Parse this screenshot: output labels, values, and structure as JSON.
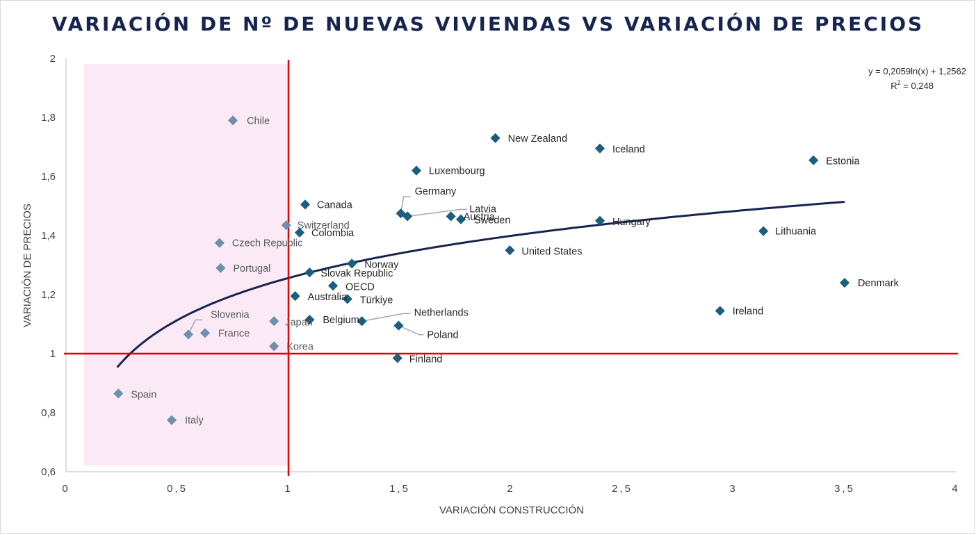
{
  "chart_data": {
    "type": "scatter",
    "title": "VARIACIÓN DE Nº DE NUEVAS VIVIENDAS VS VARIACIÓN DE PRECIOS",
    "xlabel": "VARIACIÓN CONSTRUCCIÓN",
    "ylabel": "VARIACIÓN DE PRECIOS",
    "xlim": [
      0,
      4
    ],
    "ylim": [
      0.6,
      2
    ],
    "x_ticks": [
      0,
      0.5,
      1,
      1.5,
      2,
      2.5,
      3,
      3.5,
      4
    ],
    "x_tick_labels": [
      "0",
      "0,5",
      "1",
      "1,5",
      "2",
      "2,5",
      "3",
      "3,5",
      "4"
    ],
    "y_ticks": [
      0.6,
      0.8,
      1,
      1.2,
      1.4,
      1.6,
      1.8,
      2
    ],
    "y_tick_labels": [
      "0,6",
      "0,8",
      "1",
      "1,2",
      "1,4",
      "1,6",
      "1,8",
      "2"
    ],
    "grid": false,
    "shaded_region": {
      "x": [
        0.08,
        1
      ],
      "color": "#fbeaf5"
    },
    "reference_lines": {
      "x": 1,
      "y": 1,
      "color": "#e00000"
    },
    "trendline": {
      "type": "logarithmic",
      "a": 0.2059,
      "b": 1.2562,
      "x_range": [
        0.23,
        3.5
      ],
      "equation": "y = 0,2059ln(x) + 1,2562",
      "r2_label": "R",
      "r2_exponent": "2",
      "r2_value": " = 0,248",
      "color": "#17244f"
    },
    "marker_colors": {
      "inside": "#1b5e7e",
      "shaded": "#6f8fae"
    },
    "points": [
      {
        "name": "Chile",
        "x": 0.75,
        "y": 1.79
      },
      {
        "name": "Czech Republic",
        "x": 0.69,
        "y": 1.375
      },
      {
        "name": "Portugal",
        "x": 0.695,
        "y": 1.29
      },
      {
        "name": "Slovenia",
        "x": 0.55,
        "y": 1.065
      },
      {
        "name": "France",
        "x": 0.625,
        "y": 1.07
      },
      {
        "name": "Japan",
        "x": 0.935,
        "y": 1.11
      },
      {
        "name": "Korea",
        "x": 0.935,
        "y": 1.025
      },
      {
        "name": "Spain",
        "x": 0.235,
        "y": 0.865
      },
      {
        "name": "Italy",
        "x": 0.475,
        "y": 0.775
      },
      {
        "name": "Switzerland",
        "x": 0.99,
        "y": 1.435
      },
      {
        "name": "Colombia",
        "x": 1.05,
        "y": 1.41
      },
      {
        "name": "Canada",
        "x": 1.075,
        "y": 1.505
      },
      {
        "name": "Slovak Republic",
        "x": 1.095,
        "y": 1.275
      },
      {
        "name": "Norway",
        "x": 1.285,
        "y": 1.305
      },
      {
        "name": "OECD",
        "x": 1.2,
        "y": 1.23
      },
      {
        "name": "Australia",
        "x": 1.03,
        "y": 1.195
      },
      {
        "name": "Türkiye",
        "x": 1.265,
        "y": 1.185
      },
      {
        "name": "Belgium",
        "x": 1.095,
        "y": 1.115
      },
      {
        "name": "Netherlands",
        "x": 1.33,
        "y": 1.11
      },
      {
        "name": "Poland",
        "x": 1.495,
        "y": 1.095
      },
      {
        "name": "Finland",
        "x": 1.49,
        "y": 0.985
      },
      {
        "name": "Germany",
        "x": 1.505,
        "y": 1.475
      },
      {
        "name": "Latvia",
        "x": 1.535,
        "y": 1.465
      },
      {
        "name": "Austria",
        "x": 1.73,
        "y": 1.465
      },
      {
        "name": "Sweden",
        "x": 1.775,
        "y": 1.455
      },
      {
        "name": "Luxembourg",
        "x": 1.575,
        "y": 1.62
      },
      {
        "name": "New Zealand",
        "x": 1.93,
        "y": 1.73
      },
      {
        "name": "United States",
        "x": 1.995,
        "y": 1.35
      },
      {
        "name": "Iceland",
        "x": 2.4,
        "y": 1.695
      },
      {
        "name": "Hungary",
        "x": 2.4,
        "y": 1.45
      },
      {
        "name": "Ireland",
        "x": 2.94,
        "y": 1.145
      },
      {
        "name": "Lithuania",
        "x": 3.135,
        "y": 1.415
      },
      {
        "name": "Estonia",
        "x": 3.36,
        "y": 1.655
      },
      {
        "name": "Denmark",
        "x": 3.5,
        "y": 1.24
      }
    ]
  }
}
